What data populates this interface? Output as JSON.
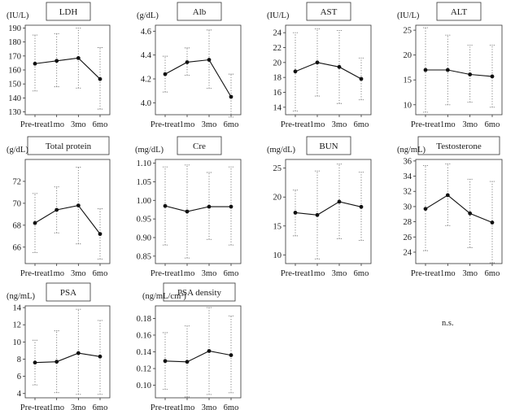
{
  "footnote": "n.s.",
  "chart_data": [
    {
      "type": "line",
      "title": "LDH",
      "unit": "(IU/L)",
      "categories": [
        "Pre-treat",
        "1mo",
        "3mo",
        "6mo"
      ],
      "yticks": [
        130,
        140,
        150,
        160,
        170,
        180,
        190
      ],
      "ylim": [
        128,
        192
      ],
      "values": [
        164.5,
        166.5,
        168.5,
        153.5
      ],
      "err_low": [
        145,
        148,
        147,
        132
      ],
      "err_high": [
        185,
        186,
        190,
        176
      ]
    },
    {
      "type": "line",
      "title": "Alb",
      "unit": "(g/dL)",
      "categories": [
        "Pre-treat",
        "1mo",
        "3mo",
        "6mo"
      ],
      "yticks": [
        4.0,
        4.2,
        4.4,
        4.6
      ],
      "ylim": [
        3.9,
        4.65
      ],
      "values": [
        4.24,
        4.34,
        4.36,
        4.05
      ],
      "err_low": [
        4.09,
        4.23,
        4.12,
        3.88
      ],
      "err_high": [
        4.39,
        4.46,
        4.61,
        4.24
      ]
    },
    {
      "type": "line",
      "title": "AST",
      "unit": "(IU/L)",
      "categories": [
        "Pre-treat",
        "1mo",
        "3mo",
        "6mo"
      ],
      "yticks": [
        14,
        16,
        18,
        20,
        22,
        24
      ],
      "ylim": [
        13,
        25
      ],
      "values": [
        18.8,
        20.0,
        19.4,
        17.8
      ],
      "err_low": [
        13.5,
        15.5,
        14.5,
        15.0
      ],
      "err_high": [
        24.0,
        24.5,
        24.3,
        20.6
      ]
    },
    {
      "type": "line",
      "title": "ALT",
      "unit": "(IU/L)",
      "categories": [
        "Pre-treat",
        "1mo",
        "3mo",
        "6mo"
      ],
      "yticks": [
        10,
        15,
        20,
        25
      ],
      "ylim": [
        8,
        26
      ],
      "values": [
        17.0,
        17.0,
        16.1,
        15.7
      ],
      "err_low": [
        8.5,
        10.0,
        10.5,
        9.5
      ],
      "err_high": [
        25.5,
        24.0,
        22.0,
        22.0
      ]
    },
    {
      "type": "line",
      "title": "Total protein",
      "unit": "(g/dL)",
      "categories": [
        "Pre-treat",
        "1mo",
        "3mo",
        "6mo"
      ],
      "yticks": [
        66,
        68,
        70,
        72
      ],
      "ylim": [
        64.5,
        74
      ],
      "values": [
        68.2,
        69.4,
        69.8,
        67.2
      ],
      "err_low": [
        65.5,
        67.3,
        66.3,
        64.9
      ],
      "err_high": [
        70.9,
        71.5,
        73.3,
        69.5
      ]
    },
    {
      "type": "line",
      "title": "Cre",
      "unit": "(mg/dL)",
      "categories": [
        "Pre-treat",
        "1mo",
        "3mo",
        "6mo"
      ],
      "yticks": [
        0.85,
        0.9,
        0.95,
        1.0,
        1.05,
        1.1
      ],
      "ylim": [
        0.83,
        1.11
      ],
      "values": [
        0.985,
        0.97,
        0.983,
        0.983
      ],
      "err_low": [
        0.88,
        0.845,
        0.895,
        0.88
      ],
      "err_high": [
        1.09,
        1.095,
        1.075,
        1.09
      ]
    },
    {
      "type": "line",
      "title": "BUN",
      "unit": "(mg/dL)",
      "categories": [
        "Pre-treat",
        "1mo",
        "3mo",
        "6mo"
      ],
      "yticks": [
        10,
        15,
        20,
        25
      ],
      "ylim": [
        8.5,
        26.5
      ],
      "values": [
        17.3,
        16.9,
        19.2,
        18.3
      ],
      "err_low": [
        13.3,
        9.3,
        12.8,
        12.5
      ],
      "err_high": [
        21.2,
        24.5,
        25.7,
        24.3
      ]
    },
    {
      "type": "line",
      "title": "Testosterone",
      "unit": "(ng/mL)",
      "categories": [
        "Pre-treat",
        "1mo",
        "3mo",
        "6mo"
      ],
      "yticks": [
        24,
        26,
        28,
        30,
        32,
        34,
        36
      ],
      "ylim": [
        22.5,
        36.2
      ],
      "values": [
        29.7,
        31.5,
        29.1,
        27.9
      ],
      "err_low": [
        24.2,
        27.5,
        24.6,
        22.6
      ],
      "err_high": [
        35.4,
        35.6,
        33.6,
        33.3
      ]
    },
    {
      "type": "line",
      "title": "PSA",
      "unit": "(ng/mL)",
      "categories": [
        "Pre-treat",
        "1mo",
        "3mo",
        "6mo"
      ],
      "yticks": [
        4,
        6,
        8,
        10,
        12,
        14
      ],
      "ylim": [
        3.5,
        14.2
      ],
      "values": [
        7.6,
        7.7,
        8.7,
        8.3
      ],
      "err_low": [
        5.0,
        4.1,
        3.9,
        3.9
      ],
      "err_high": [
        10.2,
        11.3,
        13.8,
        12.5
      ]
    },
    {
      "type": "line",
      "title": "PSA density",
      "unit": "(ng/mL/cm³)",
      "categories": [
        "Pre-treat",
        "1mo",
        "3mo",
        "6mo"
      ],
      "yticks": [
        0.1,
        0.12,
        0.14,
        0.16,
        0.18
      ],
      "ylim": [
        0.085,
        0.195
      ],
      "values": [
        0.129,
        0.128,
        0.141,
        0.136
      ],
      "err_low": [
        0.095,
        0.086,
        0.089,
        0.091
      ],
      "err_high": [
        0.163,
        0.171,
        0.193,
        0.183
      ]
    }
  ]
}
